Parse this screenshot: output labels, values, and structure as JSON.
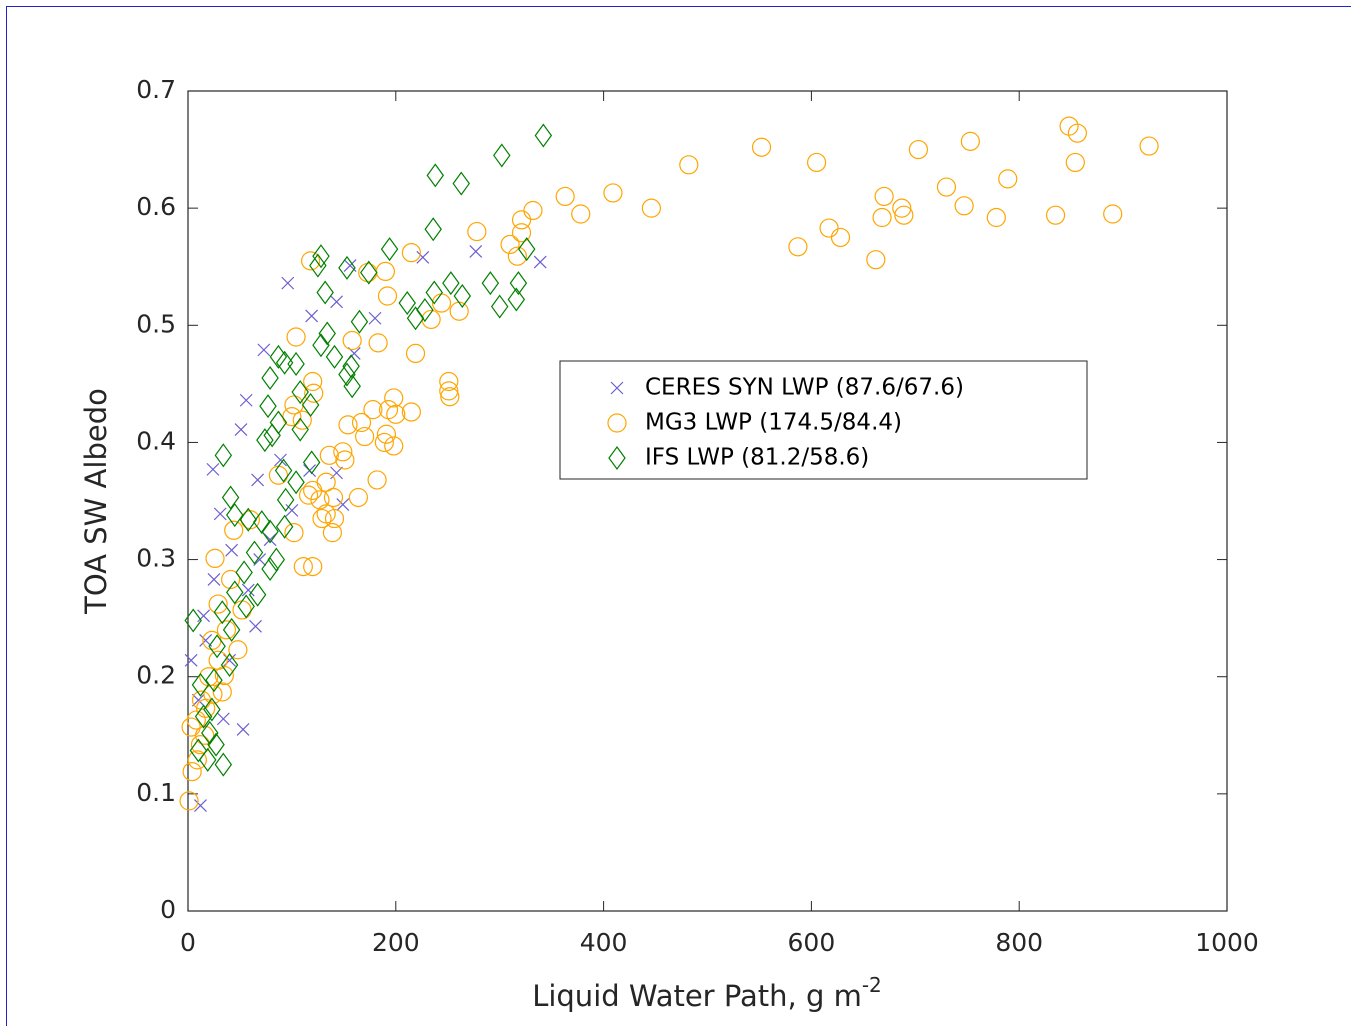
{
  "chart_data": {
    "type": "scatter",
    "xlabel": "Liquid Water Path, g m",
    "xlabel_superscript": "-2",
    "ylabel": "TOA SW Albedo",
    "xlim": [
      0,
      1000
    ],
    "xticks": [
      0,
      200,
      400,
      600,
      800,
      1000
    ],
    "ylim": [
      0,
      0.7
    ],
    "yticks": [
      0,
      0.1,
      0.2,
      0.3,
      0.4,
      0.5,
      0.6,
      0.7
    ],
    "grid": false,
    "series": [
      {
        "name": "CERES SYN LWP (87.6/67.6)",
        "color": "#6a5fd0",
        "marker": "x",
        "x": [
          96,
          119,
          180,
          226,
          277,
          339,
          143,
          156,
          160,
          143,
          149,
          73,
          56,
          51,
          24,
          31,
          42,
          25,
          15,
          3,
          10,
          12,
          53,
          34,
          65,
          67,
          89,
          100,
          117,
          79,
          58,
          69,
          17,
          40
        ],
        "values": [
          0.536,
          0.508,
          0.506,
          0.558,
          0.563,
          0.554,
          0.52,
          0.551,
          0.476,
          0.374,
          0.347,
          0.479,
          0.436,
          0.411,
          0.377,
          0.339,
          0.308,
          0.283,
          0.252,
          0.214,
          0.18,
          0.09,
          0.155,
          0.164,
          0.243,
          0.368,
          0.385,
          0.342,
          0.376,
          0.317,
          0.274,
          0.3,
          0.231,
          0.214
        ]
      },
      {
        "name": "MG3 LWP (174.5/84.4)",
        "color": "#ffa500",
        "marker": "circle",
        "x": [
          552,
          482,
          409,
          446,
          363,
          378,
          332,
          321,
          321,
          310,
          317,
          278,
          605,
          703,
          753,
          848,
          856,
          925,
          854,
          789,
          730,
          670,
          687,
          689,
          747,
          668,
          778,
          835,
          890,
          617,
          628,
          587,
          662,
          215,
          190,
          173,
          192,
          118,
          261,
          234,
          244,
          104,
          158,
          183,
          219,
          251,
          251,
          252,
          198,
          178,
          193,
          215,
          200,
          167,
          154,
          191,
          170,
          198,
          189,
          149,
          136,
          151,
          182,
          133,
          120,
          164,
          140,
          127,
          116,
          133,
          141,
          129,
          139,
          111,
          120,
          102,
          100,
          110,
          121,
          120,
          102,
          87,
          1,
          4,
          9,
          3,
          12,
          17,
          24,
          33,
          29,
          23,
          29,
          26,
          41,
          52,
          37,
          48,
          35,
          16,
          8,
          13,
          20,
          44,
          60
        ],
        "values": [
          0.652,
          0.637,
          0.613,
          0.6,
          0.61,
          0.595,
          0.598,
          0.59,
          0.579,
          0.569,
          0.559,
          0.58,
          0.639,
          0.65,
          0.657,
          0.67,
          0.664,
          0.653,
          0.639,
          0.625,
          0.618,
          0.61,
          0.6,
          0.594,
          0.602,
          0.592,
          0.592,
          0.594,
          0.595,
          0.583,
          0.575,
          0.567,
          0.556,
          0.562,
          0.546,
          0.545,
          0.525,
          0.555,
          0.512,
          0.505,
          0.519,
          0.49,
          0.487,
          0.485,
          0.476,
          0.452,
          0.444,
          0.439,
          0.438,
          0.428,
          0.428,
          0.426,
          0.424,
          0.417,
          0.415,
          0.407,
          0.405,
          0.397,
          0.4,
          0.392,
          0.389,
          0.385,
          0.368,
          0.366,
          0.359,
          0.353,
          0.353,
          0.351,
          0.355,
          0.339,
          0.335,
          0.335,
          0.323,
          0.294,
          0.294,
          0.323,
          0.422,
          0.419,
          0.442,
          0.452,
          0.432,
          0.372,
          0.094,
          0.119,
          0.129,
          0.157,
          0.142,
          0.173,
          0.185,
          0.187,
          0.214,
          0.231,
          0.262,
          0.301,
          0.283,
          0.257,
          0.24,
          0.223,
          0.201,
          0.15,
          0.163,
          0.18,
          0.2,
          0.325,
          0.334
        ]
      },
      {
        "name": "IFS LWP (81.2/58.6)",
        "color": "#008000",
        "marker": "diamond",
        "x": [
          342,
          302,
          238,
          263,
          236,
          194,
          326,
          128,
          125,
          153,
          174,
          132,
          291,
          264,
          253,
          237,
          211,
          318,
          300,
          316,
          228,
          219,
          165,
          134,
          128,
          141,
          153,
          158,
          157,
          108,
          87,
          79,
          104,
          93,
          77,
          87,
          108,
          118,
          119,
          104,
          92,
          81,
          74,
          94,
          71,
          79,
          58,
          34,
          41,
          45,
          64,
          54,
          79,
          45,
          56,
          33,
          42,
          28,
          5,
          40,
          25,
          23,
          15,
          21,
          10,
          27,
          19,
          34,
          12,
          67,
          93,
          85
        ],
        "values": [
          0.662,
          0.645,
          0.628,
          0.621,
          0.582,
          0.565,
          0.565,
          0.559,
          0.551,
          0.549,
          0.545,
          0.528,
          0.536,
          0.525,
          0.536,
          0.528,
          0.519,
          0.536,
          0.516,
          0.522,
          0.513,
          0.506,
          0.503,
          0.493,
          0.483,
          0.473,
          0.458,
          0.448,
          0.465,
          0.443,
          0.473,
          0.455,
          0.467,
          0.468,
          0.431,
          0.417,
          0.411,
          0.432,
          0.383,
          0.366,
          0.376,
          0.406,
          0.402,
          0.351,
          0.332,
          0.324,
          0.334,
          0.389,
          0.353,
          0.338,
          0.306,
          0.289,
          0.292,
          0.272,
          0.26,
          0.255,
          0.24,
          0.226,
          0.248,
          0.21,
          0.197,
          0.172,
          0.166,
          0.152,
          0.137,
          0.142,
          0.129,
          0.125,
          0.193,
          0.27,
          0.328,
          0.3
        ]
      }
    ]
  }
}
